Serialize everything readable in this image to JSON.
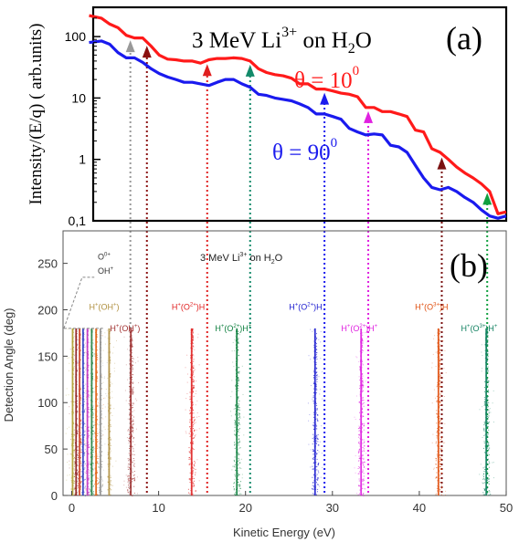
{
  "chart_data": [
    {
      "panel": "(a)",
      "type": "line",
      "title": "3 MeV Li3+ on H2O",
      "title_parts": {
        "a": "3 MeV Li",
        "sup": "3+",
        "b": " on H",
        "sub": "2",
        "c": "O"
      },
      "ylabel": "Intensity/(E/q)  ( arb.units)",
      "yscale": "log",
      "ylim": [
        0.1,
        300
      ],
      "xlim": [
        0,
        50
      ],
      "yticks": [
        {
          "v": 100,
          "label": "100"
        },
        {
          "v": 10,
          "label": "10"
        },
        {
          "v": 1,
          "label": "1"
        },
        {
          "v": 0.1,
          "label": "0,1"
        }
      ],
      "series": [
        {
          "name": "θ = 10°",
          "label_main": "θ = 10",
          "label_sup": "0",
          "color": "#ff1a1a",
          "x": [
            -0.5,
            1,
            2,
            3,
            4,
            5,
            6,
            7,
            8,
            9,
            10,
            11,
            12,
            13,
            14,
            15,
            16,
            17,
            18,
            19,
            20,
            21,
            22,
            23,
            24,
            25,
            26,
            27,
            28,
            29,
            30,
            31,
            32,
            33,
            34,
            35,
            36,
            37,
            38,
            39,
            40,
            41,
            42,
            43,
            44,
            45,
            46,
            47,
            48,
            49,
            50
          ],
          "y": [
            220,
            200,
            160,
            140,
            105,
            95,
            95,
            70,
            50,
            43,
            42,
            40,
            40,
            37,
            42,
            44,
            44,
            45,
            44,
            40,
            30,
            26,
            24,
            23,
            21,
            17,
            17,
            14,
            14,
            13,
            12,
            11.5,
            10.5,
            7,
            7,
            6,
            6,
            5.5,
            5,
            3,
            2.8,
            1.5,
            1.3,
            1,
            0.75,
            0.6,
            0.5,
            0.4,
            0.3,
            0.13,
            0.14
          ]
        },
        {
          "name": "θ = 90°",
          "label_main": "θ = 90",
          "label_sup": "0",
          "color": "#1a1aee",
          "x": [
            -0.5,
            1,
            2,
            3,
            4,
            5,
            6,
            7,
            8,
            9,
            10,
            11,
            12,
            13,
            14,
            15,
            16,
            17,
            18,
            19,
            20,
            21,
            22,
            23,
            24,
            25,
            26,
            27,
            28,
            29,
            30,
            31,
            32,
            33,
            34,
            35,
            36,
            37,
            38,
            39,
            40,
            41,
            42,
            43,
            44,
            45,
            46,
            47,
            48,
            49,
            50
          ],
          "y": [
            80,
            85,
            75,
            55,
            45,
            45,
            38,
            30,
            25,
            22,
            20,
            18,
            18,
            17,
            16,
            18,
            20,
            20,
            17,
            15,
            11.5,
            11,
            10,
            9.5,
            9,
            8,
            7,
            5.5,
            5.5,
            5,
            4.5,
            3.2,
            2.8,
            2.5,
            2.6,
            2.5,
            1.7,
            1.6,
            1.3,
            0.8,
            0.5,
            0.35,
            0.32,
            0.35,
            0.3,
            0.24,
            0.2,
            0.15,
            0.12,
            0.11,
            0.12
          ]
        }
      ],
      "arrows": [
        {
          "x": 4.5,
          "color": "#999999"
        },
        {
          "x": 6.5,
          "color": "#8b1010"
        },
        {
          "x": 13.8,
          "color": "#e02020"
        },
        {
          "x": 19,
          "color": "#138a6a"
        },
        {
          "x": 28,
          "color": "#1a1aee"
        },
        {
          "x": 33.3,
          "color": "#e020e0"
        },
        {
          "x": 42.2,
          "color": "#7a1010"
        },
        {
          "x": 47.7,
          "color": "#10a040"
        }
      ]
    },
    {
      "panel": "(b)",
      "type": "scatter",
      "title": "3 MeV Li3+ on H2O",
      "title_parts": {
        "a": "3 MeV Li",
        "sup": "3+",
        "b": " on H",
        "sub": "2",
        "c": "O"
      },
      "xlabel": "Kinetic Energy (eV)",
      "ylabel": "Detection Angle (deg)",
      "xlim": [
        -1,
        50
      ],
      "ylim": [
        0,
        285
      ],
      "xticks": [
        0,
        10,
        20,
        30,
        40,
        50
      ],
      "yticks": [
        0,
        50,
        100,
        150,
        200,
        250
      ],
      "bands": [
        {
          "x": 0.1,
          "color": "#b0a030"
        },
        {
          "x": 0.5,
          "color": "#8b2020"
        },
        {
          "x": 0.9,
          "color": "#d04020"
        },
        {
          "x": 1.3,
          "color": "#3040c0"
        },
        {
          "x": 1.8,
          "color": "#c030c0"
        },
        {
          "x": 2.3,
          "color": "#208040"
        },
        {
          "x": 2.8,
          "color": "#e06010"
        },
        {
          "x": 3.3,
          "color": "#909090"
        },
        {
          "x": 4.3,
          "color": "#b09040"
        },
        {
          "x": 6.8,
          "color": "#a03030"
        },
        {
          "x": 13.8,
          "color": "#e02020"
        },
        {
          "x": 19.0,
          "color": "#108040"
        },
        {
          "x": 28.0,
          "color": "#2020d0"
        },
        {
          "x": 33.3,
          "color": "#e020e0"
        },
        {
          "x": 42.2,
          "color": "#e05010"
        },
        {
          "x": 47.7,
          "color": "#108060"
        }
      ],
      "annotations": [
        {
          "x": 3.0,
          "y": 254,
          "main": "O",
          "sup": "0+",
          "color": "#333333"
        },
        {
          "x": 3.0,
          "y": 239,
          "main": "OH",
          "sup": "+",
          "color": "#333333"
        },
        {
          "x": 2.0,
          "y": 200,
          "main": "H",
          "sup": "+",
          "rest": "(OH",
          "sup2": "+",
          "end": ")",
          "color": "#b09040"
        },
        {
          "x": 4.4,
          "y": 177,
          "main": "H",
          "sup": "+",
          "rest": "(OH",
          "sup2": "+",
          "end": ")",
          "color": "#a03030"
        },
        {
          "x": 11.5,
          "y": 200,
          "main": "H",
          "sup": "+",
          "rest": "(O",
          "sup2": "2+",
          "end": ")H",
          "color": "#e02020"
        },
        {
          "x": 16.5,
          "y": 177,
          "main": "H",
          "sup": "+",
          "rest": "(O",
          "sup2": "2+",
          "end": ")H",
          "end2": "+",
          "color": "#108040"
        },
        {
          "x": 25.0,
          "y": 200,
          "main": "H",
          "sup": "+",
          "rest": "(O",
          "sup2": "2+",
          "end": ")H",
          "color": "#2020d0"
        },
        {
          "x": 31.0,
          "y": 177,
          "main": "H",
          "sup": "+",
          "rest": "(O",
          "sup2": "2+",
          "end": ")H",
          "end2": "+",
          "color": "#e020e0"
        },
        {
          "x": 39.5,
          "y": 200,
          "main": "H",
          "sup": "+",
          "rest": "(O",
          "sup2": "3+",
          "end": ")H",
          "color": "#e05010"
        },
        {
          "x": 44.8,
          "y": 177,
          "main": "H",
          "sup": "+",
          "rest": "(O",
          "sup2": "3+",
          "end": ")H",
          "end2": "+",
          "color": "#108060"
        }
      ]
    }
  ]
}
